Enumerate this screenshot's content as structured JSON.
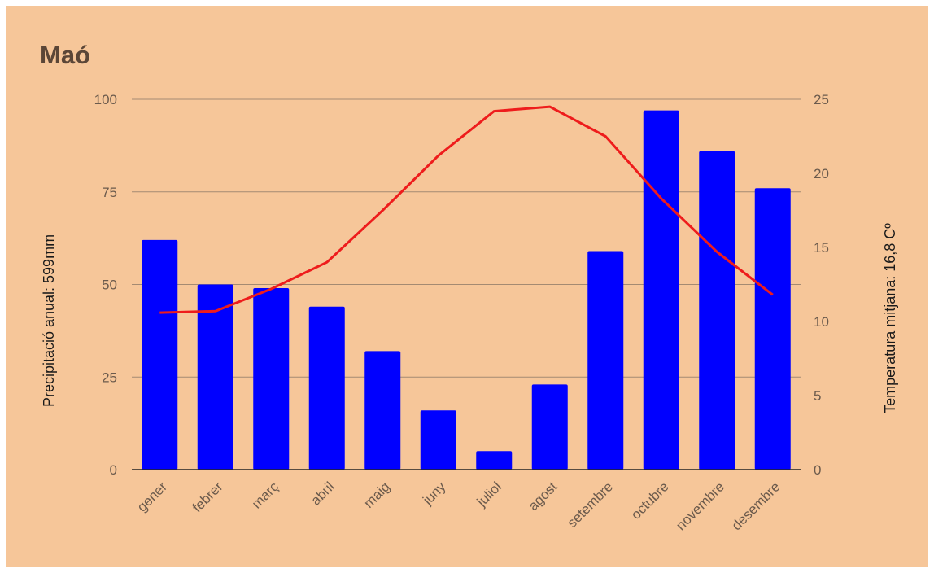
{
  "title": "Maó",
  "chart_data": {
    "type": "bar",
    "title": "Maó",
    "categories": [
      "gener",
      "febrer",
      "març",
      "abril",
      "maig",
      "juny",
      "juliol",
      "agost",
      "setembre",
      "octubre",
      "novembre",
      "desembre"
    ],
    "series": [
      {
        "type": "bar",
        "axis": "left",
        "values": [
          62,
          50,
          49,
          44,
          32,
          16,
          5,
          23,
          59,
          97,
          86,
          76
        ]
      },
      {
        "type": "line",
        "axis": "right",
        "values": [
          10.6,
          10.7,
          12.2,
          14.0,
          17.5,
          21.2,
          24.2,
          24.5,
          22.5,
          18.3,
          14.7,
          11.8
        ]
      }
    ],
    "ylabel": "Precipitació anual: 599mm",
    "ylabel_right": "Temperatura mitjana: 16,8 Cº",
    "ylim": [
      0,
      100
    ],
    "ylim_right": [
      0,
      25
    ],
    "yticks": [
      "0",
      "25",
      "50",
      "75",
      "100"
    ],
    "yticks_right": [
      "0",
      "5",
      "10",
      "15",
      "20",
      "25"
    ],
    "grid": true,
    "colors": {
      "bars": "#0000ff",
      "line": "#ee1c1c",
      "background": "#f6c699",
      "grid": "#a48a72",
      "axis": "#222222"
    }
  }
}
